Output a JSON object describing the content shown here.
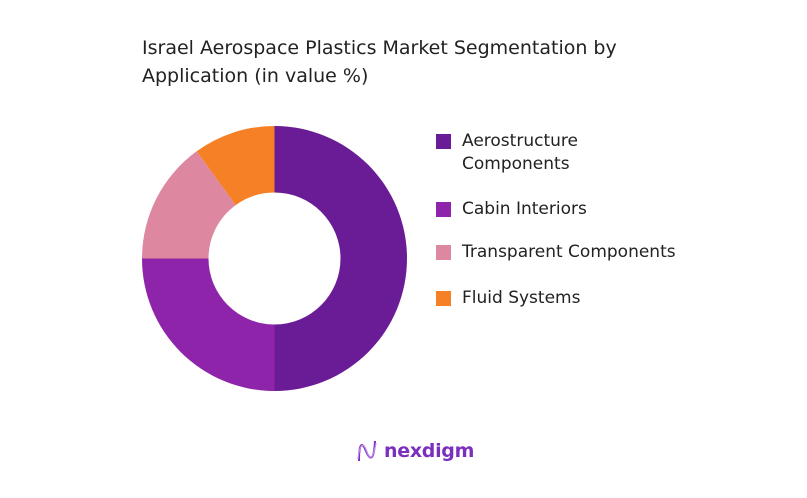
{
  "chart_data": {
    "type": "pie",
    "donut": true,
    "title": "Israel Aerospace Plastics Market Segmentation by Application (in value %)",
    "categories": [
      "Aerostructure Components",
      "Cabin Interiors",
      "Transparent Components",
      "Fluid Systems"
    ],
    "values": [
      50,
      25,
      15,
      10
    ],
    "colors": [
      "#6a1b96",
      "#8e24aa",
      "#dd88a0",
      "#f58025"
    ],
    "legend_position": "right",
    "start_angle": "top, clockwise"
  },
  "legend_labels": [
    "Aerostructure\nComponents",
    "Cabin Interiors",
    "Transparent Components",
    "Fluid Systems"
  ],
  "brand": {
    "name": "nexdigm",
    "color": "#7b2fbe"
  }
}
